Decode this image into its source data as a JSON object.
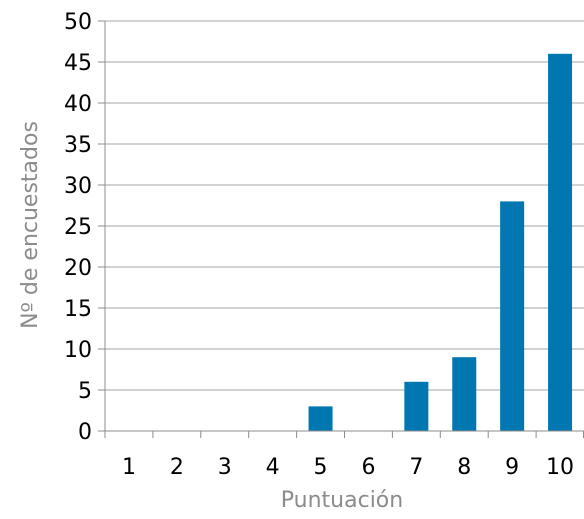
{
  "chart_data": {
    "type": "bar",
    "title": "",
    "xlabel": "Puntuación",
    "ylabel": "Nº de encuestados",
    "categories": [
      "1",
      "2",
      "3",
      "4",
      "5",
      "6",
      "7",
      "8",
      "9",
      "10"
    ],
    "values": [
      0,
      0,
      0,
      0,
      3,
      0,
      6,
      9,
      28,
      46
    ],
    "ylim": [
      0,
      50
    ],
    "yticks": [
      "0",
      "5",
      "10",
      "15",
      "20",
      "25",
      "30",
      "35",
      "40",
      "45",
      "50"
    ],
    "grid": true,
    "legend": "none",
    "colors": {
      "bar": "#0077b0",
      "grid": "#a6a6a6",
      "axis": "#8c8c8c",
      "tick_text": "#000000",
      "axis_title": "#8c8c8c"
    }
  }
}
